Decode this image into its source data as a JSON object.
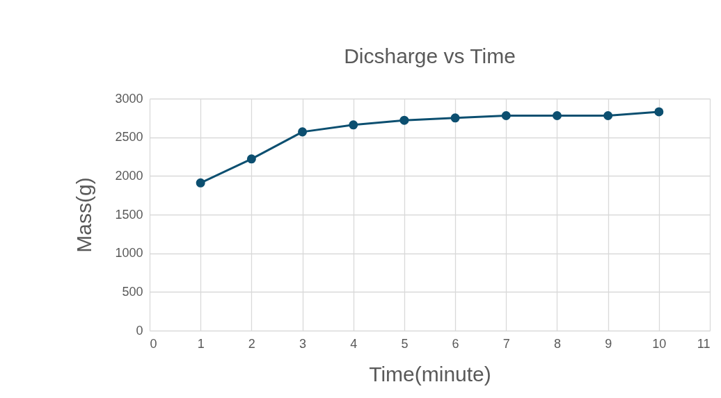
{
  "chart_data": {
    "type": "line",
    "title": "Dicsharge vs Time",
    "xlabel": "Time(minute)",
    "ylabel": "Mass(g)",
    "x": [
      1,
      2,
      3,
      4,
      5,
      6,
      7,
      8,
      9,
      10
    ],
    "series": [
      {
        "color": "#0c4f70",
        "values": [
          1910,
          2220,
          2570,
          2660,
          2720,
          2750,
          2780,
          2780,
          2780,
          2830
        ]
      }
    ],
    "xlim": [
      0,
      11
    ],
    "xticks": [
      0,
      1,
      2,
      3,
      4,
      5,
      6,
      7,
      8,
      9,
      10,
      11
    ],
    "ylim": [
      0,
      3000
    ],
    "yticks": [
      0,
      500,
      1000,
      1500,
      2000,
      2500,
      3000
    ],
    "grid": true,
    "marker": "circle",
    "line_style": "solid",
    "legend": false
  }
}
